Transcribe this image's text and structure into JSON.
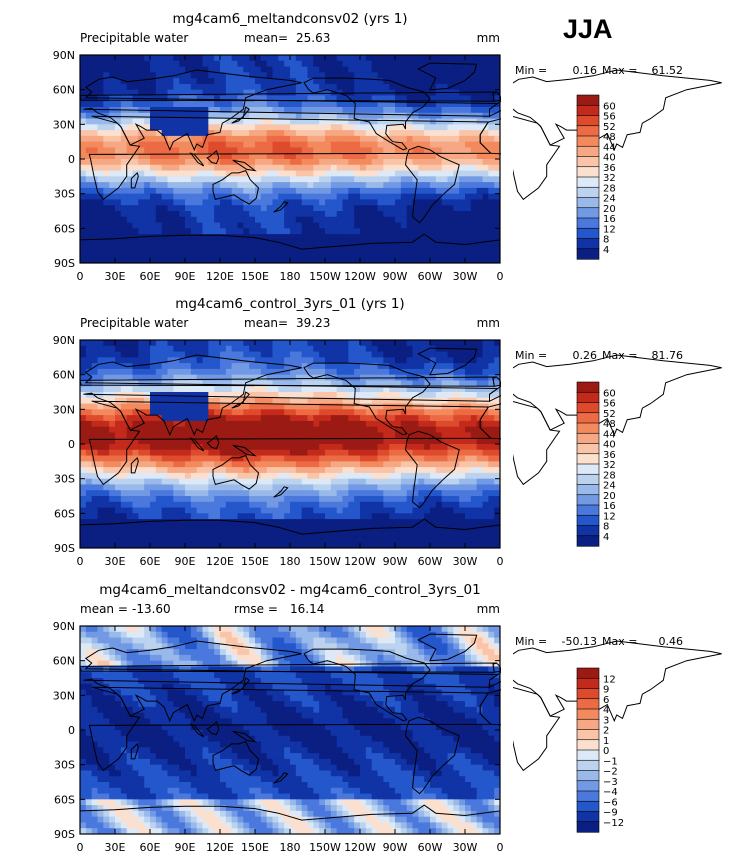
{
  "season": "JJA",
  "colors": {
    "warm": [
      "#fee0d2",
      "#fcbba1",
      "#fc9272",
      "#fb6a4a",
      "#ef3b2c",
      "#cb181d",
      "#a50f15",
      "#67000d"
    ],
    "cool": [
      "#deebf7",
      "#c6dbef",
      "#9ecae1",
      "#6baed6",
      "#4292c6",
      "#2171b5",
      "#08519c",
      "#08306b"
    ],
    "land_outline": "#000000"
  },
  "chart_data": [
    {
      "type": "heatmap",
      "title": "mg4cam6_meltandconsv02 (yrs 1)",
      "left_label": "Precipitable water",
      "stat_label": "mean=",
      "stat_value": "25.63",
      "units": "mm",
      "min_label": "Min =",
      "min_value": "0.16",
      "max_label": "Max =",
      "max_value": "61.52",
      "x_ticks": [
        "0",
        "30E",
        "60E",
        "90E",
        "120E",
        "150E",
        "180",
        "150W",
        "120W",
        "90W",
        "60W",
        "30W",
        "0"
      ],
      "y_ticks": [
        "90N",
        "60N",
        "30N",
        "0",
        "30S",
        "60S",
        "90S"
      ],
      "xlim": [
        0,
        360
      ],
      "ylim": [
        -90,
        90
      ],
      "colorbar_levels": [
        "60",
        "56",
        "52",
        "48",
        "44",
        "40",
        "36",
        "32",
        "28",
        "24",
        "20",
        "16",
        "12",
        "8",
        "4"
      ],
      "colorbar_colors": [
        "#9b1b14",
        "#c42a1c",
        "#de4a2c",
        "#ec6b45",
        "#f38a5e",
        "#f6a783",
        "#f9c4a8",
        "#fbe0cf",
        "#dde9f6",
        "#bcd3f0",
        "#98b9ea",
        "#7299e4",
        "#4a78dc",
        "#2456cc",
        "#1033a6",
        "#0b1f82"
      ],
      "field": {
        "mode": "pw",
        "base": 60,
        "tropic_peak": 48,
        "width": 30,
        "pole": 3
      }
    },
    {
      "type": "heatmap",
      "title": "mg4cam6_control_3yrs_01 (yrs 1)",
      "left_label": "Precipitable water",
      "stat_label": "mean=",
      "stat_value": "39.23",
      "units": "mm",
      "min_label": "Min =",
      "min_value": "0.26",
      "max_label": "Max =",
      "max_value": "81.76",
      "x_ticks": [
        "0",
        "30E",
        "60E",
        "90E",
        "120E",
        "150E",
        "180",
        "150W",
        "120W",
        "90W",
        "60W",
        "30W",
        "0"
      ],
      "y_ticks": [
        "90N",
        "60N",
        "30N",
        "0",
        "30S",
        "60S",
        "90S"
      ],
      "xlim": [
        0,
        360
      ],
      "ylim": [
        -90,
        90
      ],
      "colorbar_levels": [
        "60",
        "56",
        "52",
        "48",
        "44",
        "40",
        "36",
        "32",
        "28",
        "24",
        "20",
        "16",
        "12",
        "8",
        "4"
      ],
      "colorbar_colors": [
        "#9b1b14",
        "#c42a1c",
        "#de4a2c",
        "#ec6b45",
        "#f38a5e",
        "#f6a783",
        "#f9c4a8",
        "#fbe0cf",
        "#dde9f6",
        "#bcd3f0",
        "#98b9ea",
        "#7299e4",
        "#4a78dc",
        "#2456cc",
        "#1033a6",
        "#0b1f82"
      ],
      "field": {
        "mode": "pw",
        "base": 60,
        "tropic_peak": 64,
        "width": 40,
        "pole": 4
      }
    },
    {
      "type": "heatmap",
      "title": "mg4cam6_meltandconsv02 - mg4cam6_control_3yrs_01",
      "left_label": "mean =",
      "left_value": "-13.60",
      "stat_label": "rmse =",
      "stat_value": "16.14",
      "units": "mm",
      "min_label": "Min =",
      "min_value": "-50.13",
      "max_label": "Max =",
      "max_value": "0.46",
      "x_ticks": [
        "0",
        "30E",
        "60E",
        "90E",
        "120E",
        "150E",
        "180",
        "150W",
        "120W",
        "90W",
        "60W",
        "30W",
        "0"
      ],
      "y_ticks": [
        "90N",
        "60N",
        "30N",
        "0",
        "30S",
        "60S",
        "90S"
      ],
      "xlim": [
        0,
        360
      ],
      "ylim": [
        -90,
        90
      ],
      "colorbar_levels": [
        "12",
        "9",
        "6",
        "4",
        "3",
        "2",
        "1",
        "0",
        "−1",
        "−2",
        "−3",
        "−4",
        "−6",
        "−9",
        "−12"
      ],
      "colorbar_colors": [
        "#9b1b14",
        "#c42a1c",
        "#de4a2c",
        "#ec6b45",
        "#f38a5e",
        "#f6a783",
        "#f9c4a8",
        "#fbe0cf",
        "#dde9f6",
        "#bcd3f0",
        "#98b9ea",
        "#7299e4",
        "#4a78dc",
        "#2456cc",
        "#1033a6",
        "#0b1f82"
      ],
      "field": {
        "mode": "diff"
      }
    }
  ]
}
